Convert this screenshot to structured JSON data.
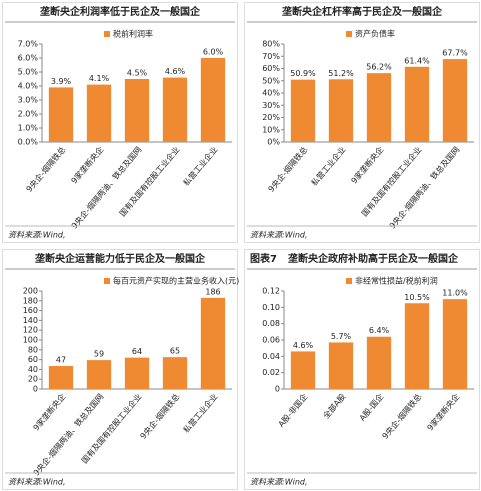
{
  "chart_data": [
    {
      "type": "bar",
      "title": "垄断央企利润率低于民企及一般国企",
      "source": "资料来源:Wind,",
      "categories": [
        "9央企-烟隔铁总",
        "9家垄断央企",
        "9央企-烟隔两油、铁总及国网",
        "国有及国有控股工业企业",
        "私营工业企业"
      ],
      "series": [
        {
          "name": "税前利润率",
          "color": "#f08a32",
          "values": [
            3.9,
            4.1,
            4.5,
            4.6,
            6.0
          ],
          "value_labels": [
            "3.9%",
            "4.1%",
            "4.5%",
            "4.6%",
            "6.0%"
          ]
        }
      ],
      "ylim": [
        0,
        7
      ],
      "yticks": [
        {
          "value": 0,
          "label": "0.0%"
        },
        {
          "value": 1,
          "label": "1.0%"
        },
        {
          "value": 2,
          "label": "2.0%"
        },
        {
          "value": 3,
          "label": "3.0%"
        },
        {
          "value": 4,
          "label": "4.0%"
        },
        {
          "value": 5,
          "label": "5.0%"
        },
        {
          "value": 6,
          "label": "6.0%"
        },
        {
          "value": 7,
          "label": "7.0%"
        }
      ]
    },
    {
      "type": "bar",
      "title": "垄断央企杠杆率高于民企及一般国企",
      "source": "资料来源:Wind,",
      "categories": [
        "9央企-烟隔铁总",
        "私营工业企业",
        "9家垄断央企",
        "国有及国有控股工业企业",
        "9央企-烟隔两油、铁总及国网"
      ],
      "series": [
        {
          "name": "资产负债率",
          "color": "#f08a32",
          "values": [
            50.9,
            51.2,
            56.2,
            61.4,
            67.7
          ],
          "value_labels": [
            "50.9%",
            "51.2%",
            "56.2%",
            "61.4%",
            "67.7%"
          ]
        }
      ],
      "ylim": [
        0,
        80
      ],
      "yticks": [
        {
          "value": 0,
          "label": "0%"
        },
        {
          "value": 10,
          "label": "10%"
        },
        {
          "value": 20,
          "label": "20%"
        },
        {
          "value": 30,
          "label": "30%"
        },
        {
          "value": 40,
          "label": "40%"
        },
        {
          "value": 50,
          "label": "50%"
        },
        {
          "value": 60,
          "label": "60%"
        },
        {
          "value": 70,
          "label": "70%"
        },
        {
          "value": 80,
          "label": "80%"
        }
      ]
    },
    {
      "type": "bar",
      "title": "垄断央企运营能力低于民企及一般国企",
      "source": "资料来源:Wind,",
      "categories": [
        "9家垄断央企",
        "9央企-烟隔两油、铁总及国网",
        "国有及国有控股工业企业",
        "9央企-烟隔铁总",
        "私营工业企业"
      ],
      "series": [
        {
          "name": "每百元资产实现的主营业务收入(元)",
          "color": "#f08a32",
          "values": [
            47,
            59,
            64,
            65,
            186
          ]
        }
      ],
      "ylim": [
        0,
        200
      ],
      "yticks": [
        0,
        20,
        40,
        60,
        80,
        100,
        120,
        140,
        160,
        180,
        200
      ]
    },
    {
      "type": "bar",
      "label": "图表7",
      "title": "垄断央企政府补助高于民企及一般国企",
      "source": "资料来源:Wind,",
      "categories": [
        "A股-非国企",
        "全部A股",
        "A股-国企",
        "9央企-烟隔铁总",
        "9家垄断央企"
      ],
      "series": [
        {
          "name": "非经常性损益/税前利润",
          "color": "#f08a32",
          "values": [
            0.046,
            0.057,
            0.064,
            0.105,
            0.11
          ],
          "value_labels": [
            "4.6%",
            "5.7%",
            "6.4%",
            "10.5%",
            "11.0%"
          ]
        }
      ],
      "ylim": [
        0,
        0.12
      ],
      "yticks": [
        0,
        0.02,
        0.04,
        0.06,
        {
          "value": 0.1,
          "label": "0.10"
        },
        0.08,
        0.12
      ]
    }
  ]
}
